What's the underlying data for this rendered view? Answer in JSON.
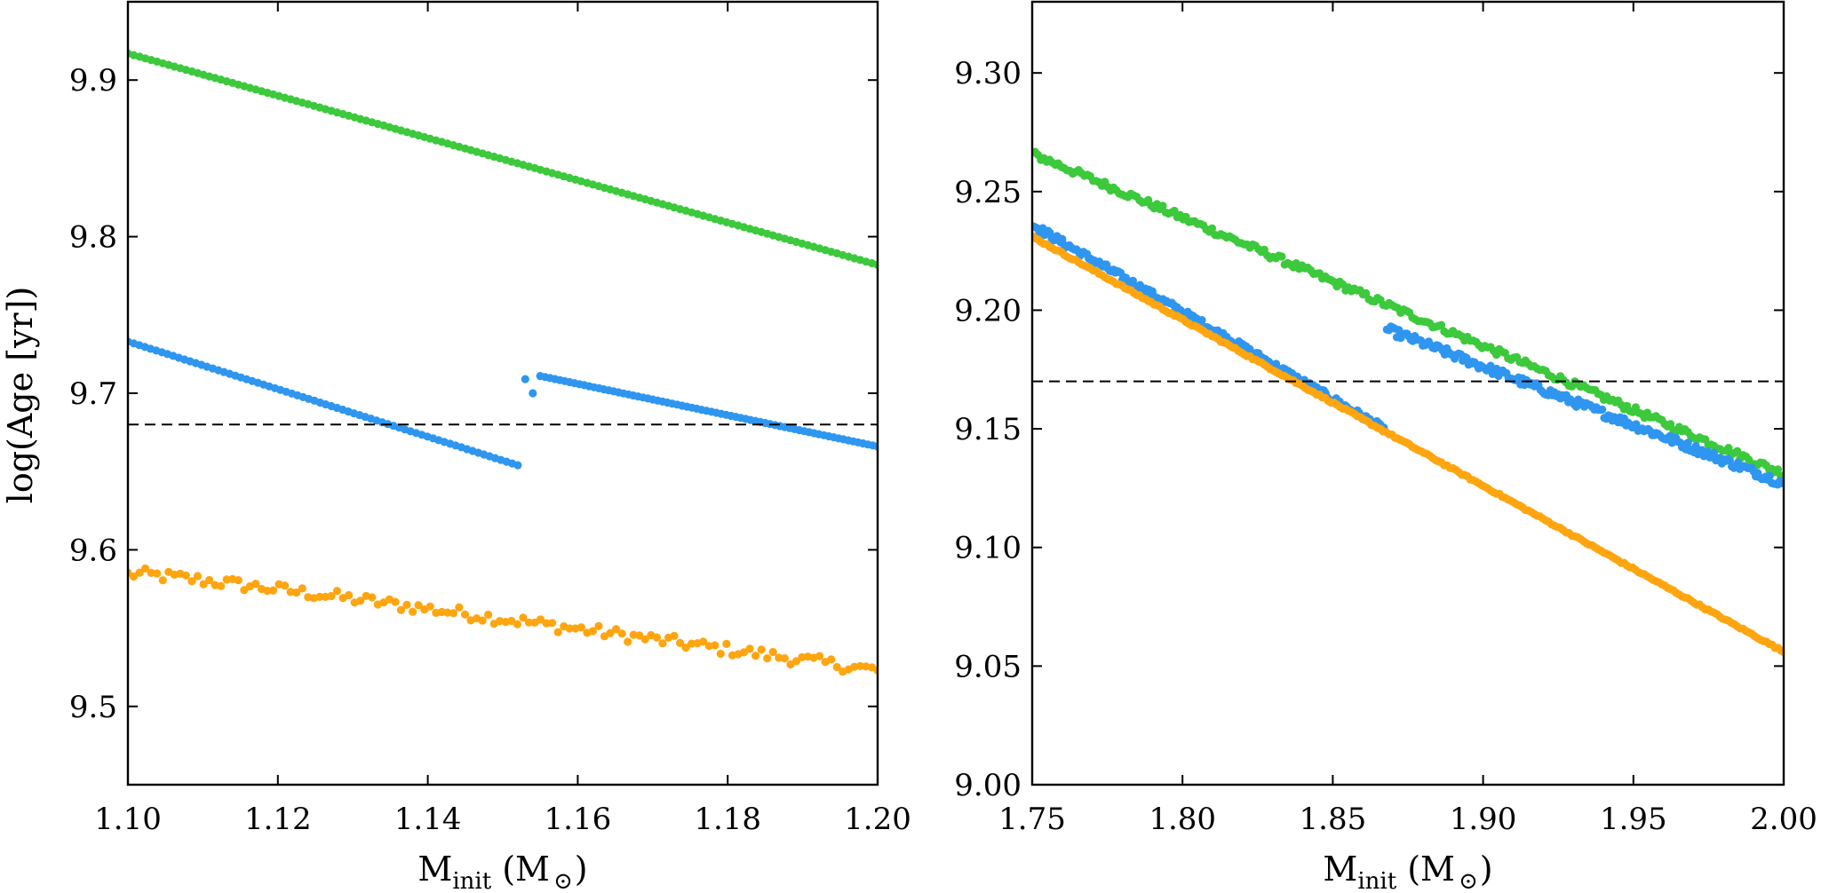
{
  "figure": {
    "ylabel": "log(Age [yr])",
    "xlabel_main": "M",
    "xlabel_sub": "init",
    "xlabel_unit_open": " (M",
    "xlabel_unit_close": ")"
  },
  "colors": {
    "green": "#3cc93c",
    "blue": "#2f96f0",
    "orange": "#ffa510",
    "reference_line": "#000000"
  },
  "chart_data": [
    {
      "type": "scatter",
      "title": "",
      "xlabel": "M_init (M⊙)",
      "ylabel": "log(Age [yr])",
      "xlim": [
        1.1,
        1.2
      ],
      "ylim": [
        9.45,
        9.95
      ],
      "x_ticks": [
        "1.10",
        "1.12",
        "1.14",
        "1.16",
        "1.18",
        "1.20"
      ],
      "y_ticks": [
        "9.5",
        "9.6",
        "9.7",
        "9.8",
        "9.9"
      ],
      "grid": false,
      "reference_line": {
        "y": 9.68,
        "style": "dashed"
      },
      "series": [
        {
          "color": "green",
          "points_per_segment": 130,
          "segments": [
            {
              "x": [
                1.1,
                1.2
              ],
              "y": [
                9.917,
                9.782
              ],
              "jitter": 0.0
            }
          ]
        },
        {
          "color": "blue",
          "points_per_segment": 70,
          "segments": [
            {
              "x": [
                1.1,
                1.152
              ],
              "y": [
                9.733,
                9.654
              ],
              "jitter": 0.0
            },
            {
              "x": [
                1.155,
                1.2
              ],
              "y": [
                9.711,
                9.666
              ],
              "jitter": 0.0
            }
          ],
          "extra_points": [
            [
              1.153,
              9.709
            ],
            [
              1.154,
              9.7
            ]
          ]
        },
        {
          "color": "orange",
          "points_per_segment": 130,
          "segments": [
            {
              "x": [
                1.1,
                1.2
              ],
              "y": [
                9.584,
                9.523
              ],
              "jitter": 0.004,
              "curve": 0.6
            }
          ]
        }
      ]
    },
    {
      "type": "scatter",
      "title": "",
      "xlabel": "M_init (M⊙)",
      "ylabel": "",
      "xlim": [
        1.75,
        2.0
      ],
      "ylim": [
        9.0,
        9.33
      ],
      "x_ticks": [
        "1.75",
        "1.80",
        "1.85",
        "1.90",
        "1.95",
        "2.00"
      ],
      "y_ticks": [
        "9.00",
        "9.05",
        "9.10",
        "9.15",
        "9.20",
        "9.25",
        "9.30"
      ],
      "grid": false,
      "reference_line": {
        "y": 9.17,
        "style": "dashed"
      },
      "series": [
        {
          "color": "green",
          "points_per_segment": 260,
          "segments": [
            {
              "x": [
                1.75,
                2.0
              ],
              "y": [
                9.266,
                9.131
              ],
              "jitter": 0.0015
            }
          ]
        },
        {
          "color": "blue",
          "points_per_segment": 200,
          "segments": [
            {
              "x": [
                1.75,
                1.867
              ],
              "y": [
                9.236,
                9.15
              ],
              "jitter": 0.0015
            },
            {
              "x": [
                1.868,
                2.0
              ],
              "y": [
                9.192,
                9.127
              ],
              "jitter": 0.0018
            }
          ]
        },
        {
          "color": "orange",
          "points_per_segment": 260,
          "segments": [
            {
              "x": [
                1.75,
                2.0
              ],
              "y": [
                9.231,
                9.056
              ],
              "jitter": 0.0004
            }
          ]
        }
      ]
    }
  ]
}
